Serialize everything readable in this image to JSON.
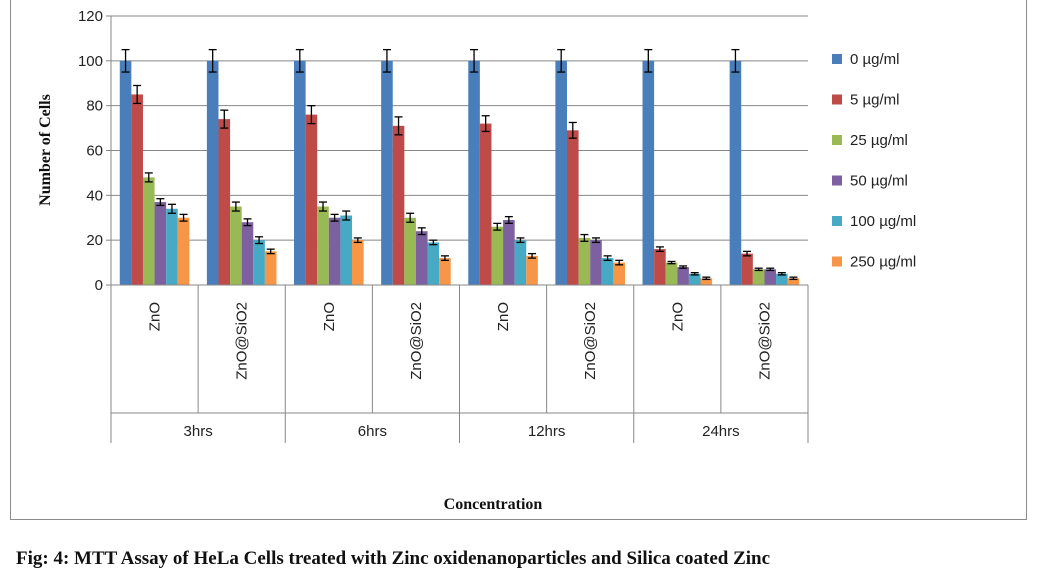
{
  "chart_data": {
    "type": "bar",
    "title": "",
    "xlabel": "Concentration",
    "ylabel": "Number  of Cells",
    "ylim": [
      0,
      120
    ],
    "yticks": [
      0,
      20,
      40,
      60,
      80,
      100,
      120
    ],
    "gridlines": true,
    "legend_position": "right",
    "group_labels": [
      "3hrs",
      "6hrs",
      "12hrs",
      "24hrs"
    ],
    "categories": [
      "ZnO",
      "ZnO@SiO2",
      "ZnO",
      "ZnO@SiO2",
      "ZnO",
      "ZnO@SiO2",
      "ZnO",
      "ZnO@SiO2"
    ],
    "series": [
      {
        "name": "0 µg/ml",
        "color": "#4a7ebb",
        "values": [
          100,
          100,
          100,
          100,
          100,
          100,
          100,
          100
        ],
        "errors": [
          5,
          5,
          5,
          5,
          5,
          5,
          5,
          5
        ]
      },
      {
        "name": "5 µg/ml",
        "color": "#be4b48",
        "values": [
          85,
          74,
          76,
          71,
          72,
          69,
          16,
          14
        ],
        "errors": [
          4,
          4,
          4,
          4,
          3.5,
          3.5,
          1,
          1
        ]
      },
      {
        "name": "25 µg/ml",
        "color": "#98b954",
        "values": [
          48,
          35,
          35,
          30,
          26,
          21,
          10,
          7
        ],
        "errors": [
          2,
          2,
          2,
          2,
          1.5,
          1.5,
          0.5,
          0.5
        ]
      },
      {
        "name": "50 µg/ml",
        "color": "#7d60a0",
        "values": [
          37,
          28,
          30,
          24,
          29,
          20,
          8,
          7
        ],
        "errors": [
          1.5,
          1.5,
          1.5,
          1.5,
          1.5,
          1,
          0.5,
          0.5
        ]
      },
      {
        "name": "100 µg/ml",
        "color": "#46aac5",
        "values": [
          34,
          20,
          31,
          19,
          20,
          12,
          5,
          5
        ],
        "errors": [
          2,
          1.5,
          2,
          1,
          1,
          1,
          0.5,
          0.5
        ]
      },
      {
        "name": "250 µg/ml",
        "color": "#f79646",
        "values": [
          30,
          15,
          20,
          12,
          13,
          10,
          3,
          3
        ],
        "errors": [
          1.5,
          1,
          1,
          1,
          1,
          1,
          0.5,
          0.5
        ]
      }
    ]
  },
  "caption": "Fig: 4: MTT Assay of HeLa Cells treated with Zinc oxidenanoparticles and Silica coated Zinc"
}
